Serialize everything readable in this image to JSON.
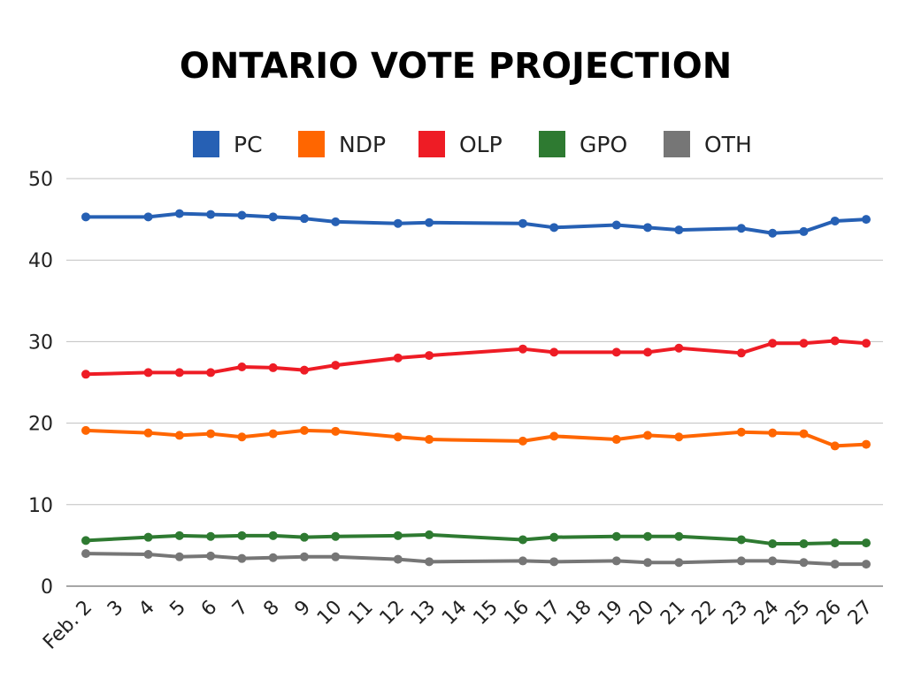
{
  "chart_data": {
    "type": "line",
    "title": "ONTARIO VOTE PROJECTION",
    "xlabel": "",
    "ylabel": "",
    "categories": [
      "Feb. 2",
      "3",
      "4",
      "5",
      "6",
      "7",
      "8",
      "9",
      "10",
      "11",
      "12",
      "13",
      "14",
      "15",
      "16",
      "17",
      "18",
      "19",
      "20",
      "21",
      "22",
      "23",
      "24",
      "25",
      "26",
      "27"
    ],
    "ylim": [
      0,
      50
    ],
    "yticks": [
      0,
      10,
      20,
      30,
      40,
      50
    ],
    "grid": true,
    "legend_position": "top",
    "series": [
      {
        "name": "PC",
        "color": "#2660b4",
        "values": [
          45.3,
          null,
          45.3,
          45.7,
          45.6,
          45.5,
          45.3,
          45.1,
          44.7,
          null,
          44.5,
          44.6,
          null,
          null,
          44.5,
          44.0,
          null,
          44.3,
          44.0,
          43.7,
          null,
          43.9,
          43.3,
          43.5,
          44.8,
          45.0
        ]
      },
      {
        "name": "NDP",
        "color": "#ff6600",
        "values": [
          19.1,
          null,
          18.8,
          18.5,
          18.7,
          18.3,
          18.7,
          19.1,
          19.0,
          null,
          18.3,
          18.0,
          null,
          null,
          17.8,
          18.4,
          null,
          18.0,
          18.5,
          18.3,
          null,
          18.9,
          18.8,
          18.7,
          17.2,
          17.4
        ]
      },
      {
        "name": "OLP",
        "color": "#ee1c25",
        "values": [
          26.0,
          null,
          26.2,
          26.2,
          26.2,
          26.9,
          26.8,
          26.5,
          27.1,
          null,
          28.0,
          28.3,
          null,
          null,
          29.1,
          28.7,
          null,
          28.7,
          28.7,
          29.2,
          null,
          28.6,
          29.8,
          29.8,
          30.1,
          29.8
        ]
      },
      {
        "name": "GPO",
        "color": "#2e7a31",
        "values": [
          5.6,
          null,
          6.0,
          6.2,
          6.1,
          6.2,
          6.2,
          6.0,
          6.1,
          null,
          6.2,
          6.3,
          null,
          null,
          5.7,
          6.0,
          null,
          6.1,
          6.1,
          6.1,
          null,
          5.7,
          5.2,
          5.2,
          5.3,
          5.3
        ]
      },
      {
        "name": "OTH",
        "color": "#767676",
        "values": [
          4.0,
          null,
          3.9,
          3.6,
          3.7,
          3.4,
          3.5,
          3.6,
          3.6,
          null,
          3.3,
          3.0,
          null,
          null,
          3.1,
          3.0,
          null,
          3.1,
          2.9,
          2.9,
          null,
          3.1,
          3.1,
          2.9,
          2.7,
          2.7
        ]
      }
    ]
  }
}
